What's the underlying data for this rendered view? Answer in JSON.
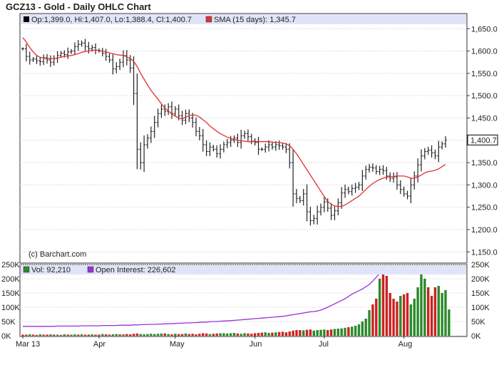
{
  "chart_data": [
    {
      "type": "ohlc",
      "title": "GCZ13 - Gold - Daily OHLC Chart",
      "legend": {
        "ohlc_text": "Op:1,399.0, Hi:1,407.0, Lo:1,388.4, Cl:1,400.7",
        "sma_text": "SMA (15 days): 1,345.7"
      },
      "watermark": "(c) Barchart.com",
      "last_price_label": "1,400.7",
      "ylim": [
        1125,
        1660
      ],
      "y_ticks": [
        {
          "value": 1150,
          "label": "1,150.0"
        },
        {
          "value": 1200,
          "label": "1,200.0"
        },
        {
          "value": 1250,
          "label": "1,250.0"
        },
        {
          "value": 1300,
          "label": "1,300.0"
        },
        {
          "value": 1350,
          "label": "1,350.0"
        },
        {
          "value": 1400,
          "label": "1,400.0"
        },
        {
          "value": 1450,
          "label": "1,450.0"
        },
        {
          "value": 1500,
          "label": "1,500.0"
        },
        {
          "value": 1550,
          "label": "1,550.0"
        },
        {
          "value": 1600,
          "label": "1,600.0"
        },
        {
          "value": 1650,
          "label": "1,650.0"
        }
      ],
      "x_ticks": [
        "Mar 13",
        "Apr",
        "May",
        "Jun",
        "Jul",
        "Aug"
      ],
      "closes": [
        1605,
        1588,
        1580,
        1582,
        1578,
        1576,
        1585,
        1580,
        1575,
        1583,
        1590,
        1595,
        1592,
        1598,
        1600,
        1610,
        1615,
        1618,
        1610,
        1605,
        1608,
        1602,
        1600,
        1595,
        1588,
        1580,
        1560,
        1565,
        1575,
        1590,
        1580,
        1562,
        1505,
        1380,
        1350,
        1390,
        1405,
        1420,
        1440,
        1460,
        1470,
        1465,
        1475,
        1460,
        1470,
        1455,
        1445,
        1460,
        1450,
        1440,
        1420,
        1410,
        1390,
        1375,
        1385,
        1380,
        1370,
        1380,
        1390,
        1395,
        1400,
        1405,
        1395,
        1410,
        1415,
        1408,
        1398,
        1395,
        1380,
        1380,
        1385,
        1390,
        1385,
        1390,
        1388,
        1385,
        1380,
        1350,
        1280,
        1270,
        1265,
        1280,
        1240,
        1220,
        1225,
        1240,
        1250,
        1262,
        1248,
        1232,
        1242,
        1260,
        1282,
        1290,
        1285,
        1292,
        1295,
        1300,
        1320,
        1335,
        1340,
        1338,
        1330,
        1335,
        1332,
        1320,
        1315,
        1318,
        1300,
        1290,
        1280,
        1275,
        1300,
        1320,
        1345,
        1365,
        1375,
        1378,
        1372,
        1365,
        1385,
        1392,
        1400.7
      ],
      "sma": [
        1630,
        1620,
        1608,
        1598,
        1590,
        1586,
        1584,
        1583,
        1583,
        1583,
        1584,
        1586,
        1588,
        1589,
        1590,
        1592,
        1594,
        1597,
        1599,
        1600,
        1601,
        1602,
        1601,
        1600,
        1598,
        1596,
        1594,
        1592,
        1591,
        1590,
        1587,
        1583,
        1577,
        1565,
        1550,
        1537,
        1524,
        1512,
        1502,
        1492,
        1482,
        1472,
        1466,
        1459,
        1454,
        1450,
        1448,
        1452,
        1455,
        1457,
        1456,
        1452,
        1446,
        1440,
        1432,
        1426,
        1420,
        1415,
        1411,
        1407,
        1404,
        1402,
        1400,
        1399,
        1398,
        1397,
        1397,
        1397,
        1397,
        1397,
        1397,
        1397,
        1396,
        1395,
        1395,
        1394,
        1392,
        1388,
        1380,
        1370,
        1358,
        1346,
        1334,
        1322,
        1310,
        1298,
        1286,
        1274,
        1263,
        1257,
        1253,
        1252,
        1252,
        1255,
        1260,
        1265,
        1270,
        1275,
        1282,
        1290,
        1297,
        1303,
        1308,
        1312,
        1315,
        1318,
        1318,
        1319,
        1320,
        1320,
        1320,
        1318,
        1315,
        1315,
        1318,
        1322,
        1327,
        1330,
        1331,
        1333,
        1336,
        1341,
        1345.7
      ],
      "volume": {
        "legend": "Vol: 92,210",
        "values": [
          4,
          4,
          5,
          4,
          3,
          5,
          4,
          4,
          5,
          4,
          4,
          3,
          5,
          4,
          4,
          5,
          4,
          5,
          4,
          4,
          5,
          4,
          4,
          6,
          5,
          4,
          5,
          6,
          5,
          5,
          6,
          5,
          7,
          8,
          6,
          5,
          6,
          7,
          6,
          7,
          8,
          8,
          6,
          5,
          7,
          6,
          6,
          8,
          6,
          7,
          5,
          7,
          9,
          8,
          6,
          7,
          8,
          9,
          9,
          8,
          9,
          10,
          8,
          7,
          9,
          8,
          7,
          9,
          10,
          11,
          12,
          10,
          11,
          12,
          13,
          14,
          12,
          15,
          18,
          20,
          20,
          19,
          21,
          22,
          18,
          20,
          21,
          22,
          20,
          22,
          24,
          25,
          26,
          28,
          30,
          32,
          35,
          40,
          50,
          60,
          90,
          110,
          130,
          200,
          220,
          210,
          150,
          130,
          120,
          140,
          145,
          150,
          110,
          130,
          170,
          230,
          200,
          170,
          140,
          170,
          175,
          150,
          160,
          92.21
        ],
        "colors": [
          "r",
          "r",
          "g",
          "r",
          "r",
          "g",
          "r",
          "r",
          "g",
          "r",
          "g",
          "r",
          "g",
          "r",
          "g",
          "g",
          "r",
          "g",
          "r",
          "r",
          "g",
          "r",
          "r",
          "g",
          "r",
          "r",
          "g",
          "g",
          "r",
          "g",
          "r",
          "r",
          "r",
          "r",
          "g",
          "g",
          "g",
          "g",
          "g",
          "g",
          "g",
          "r",
          "g",
          "r",
          "g",
          "r",
          "r",
          "g",
          "r",
          "r",
          "r",
          "r",
          "r",
          "r",
          "g",
          "r",
          "r",
          "g",
          "g",
          "g",
          "g",
          "g",
          "r",
          "g",
          "g",
          "r",
          "r",
          "r",
          "r",
          "r",
          "g",
          "g",
          "r",
          "g",
          "r",
          "r",
          "r",
          "r",
          "r",
          "r",
          "r",
          "g",
          "r",
          "r",
          "g",
          "g",
          "g",
          "g",
          "r",
          "r",
          "g",
          "g",
          "g",
          "g",
          "r",
          "g",
          "g",
          "g",
          "g",
          "g",
          "g",
          "r",
          "r",
          "g",
          "r",
          "r",
          "r",
          "r",
          "r",
          "g",
          "r",
          "r",
          "g",
          "g",
          "g",
          "g",
          "g",
          "r",
          "r",
          "r",
          "g",
          "g",
          "g",
          "g"
        ],
        "ylim": [
          0,
          250000
        ],
        "y_ticks": [
          {
            "value": 0,
            "label": "0K"
          },
          {
            "value": 50000,
            "label": "50K"
          },
          {
            "value": 100000,
            "label": "100K"
          },
          {
            "value": 150000,
            "label": "150K"
          },
          {
            "value": 200000,
            "label": "200K"
          },
          {
            "value": 250000,
            "label": "250K"
          }
        ]
      },
      "open_interest": {
        "legend": "Open Interest: 226,602",
        "values": [
          33,
          33,
          33,
          33,
          33,
          33,
          33,
          33,
          33,
          33,
          34,
          34,
          34,
          34,
          34,
          34,
          34,
          35,
          35,
          35,
          35,
          35,
          35,
          36,
          36,
          36,
          36,
          36,
          37,
          37,
          37,
          37,
          38,
          38,
          39,
          39,
          40,
          40,
          40,
          41,
          41,
          42,
          42,
          43,
          43,
          44,
          44,
          45,
          45,
          46,
          46,
          47,
          48,
          48,
          49,
          50,
          50,
          51,
          52,
          52,
          53,
          54,
          55,
          56,
          57,
          58,
          59,
          60,
          61,
          62,
          63,
          64,
          65,
          66,
          67,
          68,
          70,
          72,
          74,
          76,
          78,
          80,
          82,
          84,
          85,
          87,
          90,
          95,
          100,
          106,
          112,
          118,
          124,
          130,
          138,
          146,
          152,
          158,
          164,
          172,
          180,
          192,
          205,
          220,
          238,
          244,
          246,
          245,
          244,
          244,
          244,
          245,
          246,
          246,
          245,
          244,
          243,
          235,
          232,
          228,
          227,
          226,
          226.6
        ]
      },
      "colors": {
        "ohlc": "#222222",
        "sma": "#e03030",
        "vol_up": "#2a8a2a",
        "vol_down": "#cc2222",
        "oi": "#9b30d9",
        "legend_bg": "#e0e4f8",
        "grid": "#c8c8c8"
      }
    }
  ]
}
